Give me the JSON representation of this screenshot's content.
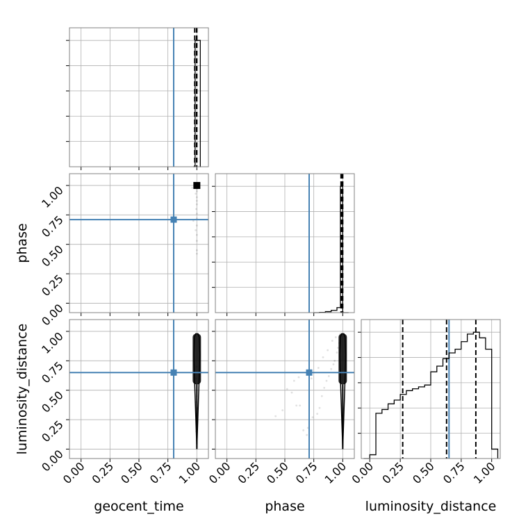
{
  "chart_data": {
    "type": "corner",
    "parameters": [
      "geocent_time",
      "phase",
      "luminosity_distance"
    ],
    "axis_labels": {
      "geocent_time": "geocent_time",
      "phase": "phase",
      "luminosity_distance": "luminosity_distance"
    },
    "tick_values": [
      0.0,
      0.25,
      0.5,
      0.75,
      1.0
    ],
    "tick_labels": [
      "0.00",
      "0.25",
      "0.50",
      "0.75",
      "1.00"
    ],
    "xlim": {
      "geocent_time": [
        -0.1,
        1.1
      ],
      "phase": [
        -0.1,
        1.1
      ],
      "luminosity_distance": [
        -0.07,
        1.07
      ]
    },
    "ylim": {
      "phase": [
        -0.08,
        1.1
      ],
      "luminosity_distance": [
        -0.08,
        1.1
      ]
    },
    "grid": true,
    "truth_color": "#4682b4",
    "histogram_color": "#000000",
    "injection": {
      "geocent_time": 0.8,
      "phase": 0.71,
      "luminosity_distance": 0.65
    },
    "marginals": {
      "geocent_time": {
        "edges": [
          0.97,
          0.975,
          0.98,
          0.985,
          0.99,
          0.995,
          1.0,
          1.005,
          1.01,
          1.015,
          1.02,
          1.025,
          1.03,
          1.035
        ],
        "counts": [
          0,
          0,
          0,
          1,
          1,
          1,
          1,
          1,
          1,
          1,
          1,
          1,
          0
        ],
        "quantiles": [
          0.982,
          0.998,
          1.0
        ]
      },
      "phase": {
        "edges": [
          0.75,
          0.8,
          0.85,
          0.9,
          0.95,
          0.98,
          1.0,
          1.05
        ],
        "counts": [
          0,
          0.002,
          0.008,
          0.018,
          0.04,
          1.0,
          0
        ],
        "quantiles": [
          0.985,
          0.995,
          1.0
        ]
      },
      "luminosity_distance": {
        "edges": [
          -0.05,
          0.0,
          0.05,
          0.1,
          0.15,
          0.2,
          0.25,
          0.3,
          0.35,
          0.4,
          0.45,
          0.5,
          0.55,
          0.6,
          0.65,
          0.7,
          0.75,
          0.8,
          0.85,
          0.9,
          0.95,
          1.0,
          1.05
        ],
        "counts": [
          0,
          0.02,
          0.24,
          0.26,
          0.29,
          0.31,
          0.34,
          0.36,
          0.37,
          0.38,
          0.39,
          0.46,
          0.49,
          0.53,
          0.56,
          0.58,
          0.62,
          0.66,
          0.67,
          0.64,
          0.58,
          0.05
        ],
        "quantiles": [
          0.27,
          0.63,
          0.87
        ]
      }
    },
    "pairs": [
      {
        "x": "geocent_time",
        "y": "phase",
        "samples_x": [
          1.0,
          1.0,
          1.0,
          1.0,
          0.99,
          1.0,
          1.0,
          1.0,
          0.995,
          1.0,
          1.0,
          0.97,
          1.0,
          0.99,
          1.0,
          0.96,
          1.0,
          1.0,
          1.0
        ],
        "samples_y": [
          1.0,
          0.99,
          0.97,
          0.95,
          0.93,
          0.9,
          0.87,
          0.84,
          0.8,
          0.76,
          0.72,
          0.7,
          0.66,
          0.62,
          0.58,
          0.98,
          0.45,
          0.42,
          0.53
        ],
        "dense_point": [
          1.0,
          1.0
        ]
      },
      {
        "x": "geocent_time",
        "y": "luminosity_distance",
        "samples_x": [
          1.0,
          1.0,
          1.0,
          0.995,
          1.0,
          1.0,
          1.0,
          1.0,
          0.99,
          1.0,
          1.0,
          1.0,
          0.99,
          1.0,
          1.0
        ],
        "samples_y": [
          0.02,
          0.05,
          0.1,
          0.15,
          0.2,
          0.25,
          0.3,
          0.35,
          0.4,
          0.45,
          0.5,
          0.55,
          0.6,
          0.65,
          0.7
        ],
        "contour_x": [
          1.0,
          0.99,
          0.98,
          0.975,
          0.98,
          0.99,
          1.0,
          1.01,
          1.02,
          1.025,
          1.02,
          1.01,
          1.0
        ],
        "contour_y": [
          0.0,
          0.3,
          0.6,
          0.8,
          0.95,
          0.98,
          0.98,
          0.98,
          0.95,
          0.8,
          0.6,
          0.3,
          0.0
        ]
      },
      {
        "x": "phase",
        "y": "luminosity_distance",
        "samples_x": [
          0.42,
          0.48,
          0.52,
          0.56,
          0.6,
          0.63,
          0.66,
          0.7,
          0.73,
          0.75,
          0.78,
          0.8,
          0.82,
          0.84,
          0.86,
          0.88,
          0.9,
          0.92,
          0.93,
          0.95,
          0.96,
          0.97,
          0.58,
          0.62,
          0.69,
          0.74,
          0.79,
          0.83,
          0.87,
          0.91,
          0.94,
          0.98
        ],
        "samples_y": [
          0.28,
          0.33,
          0.51,
          0.48,
          0.37,
          0.37,
          0.16,
          0.18,
          0.6,
          0.65,
          0.3,
          0.35,
          0.45,
          0.52,
          0.58,
          0.62,
          0.68,
          0.72,
          0.75,
          0.82,
          0.86,
          0.9,
          0.58,
          0.61,
          0.12,
          0.27,
          0.69,
          0.78,
          0.84,
          0.92,
          0.95,
          0.98
        ],
        "contour_x": [
          1.0,
          0.99,
          0.98,
          0.975,
          0.98,
          0.99,
          1.0,
          1.01,
          1.02,
          1.025,
          1.02,
          1.01,
          1.0
        ],
        "contour_y": [
          0.0,
          0.3,
          0.6,
          0.8,
          0.95,
          0.98,
          0.98,
          0.98,
          0.95,
          0.8,
          0.6,
          0.3,
          0.0
        ]
      }
    ]
  }
}
